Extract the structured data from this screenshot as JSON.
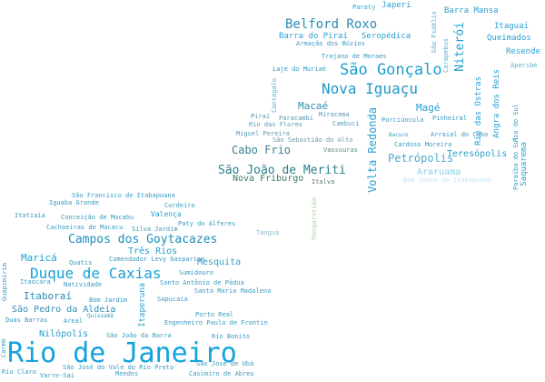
{
  "words": [
    {
      "text": "Rio de Janeiro",
      "color": "#13a3dc"
    },
    {
      "text": "Duque de Caxias",
      "color": "#16a1d6"
    },
    {
      "text": "São Gonçalo",
      "color": "#1c9fcf"
    },
    {
      "text": "Nova Iguaçu",
      "color": "#1d98c6"
    },
    {
      "text": "Campos dos Goytacazes",
      "color": "#1f8fba"
    },
    {
      "text": "Belford Roxo",
      "color": "#2a8eb5"
    },
    {
      "text": "São João de Meriti",
      "color": "#2b7d8c"
    },
    {
      "text": "Niterói",
      "color": "#24a0d0"
    },
    {
      "text": "Volta Redonda",
      "color": "#2a9fd2"
    },
    {
      "text": "Petrópolis",
      "color": "#4fa9c9"
    },
    {
      "text": "Cabo Frio",
      "color": "#3c7f95"
    },
    {
      "text": "Nova Friburgo",
      "color": "#3a7a70"
    },
    {
      "text": "Macaé",
      "color": "#2e8fb0"
    },
    {
      "text": "Magé",
      "color": "#2a9fd0"
    },
    {
      "text": "Maricá",
      "color": "#1ea3d4"
    },
    {
      "text": "Itaboraí",
      "color": "#258cb0"
    },
    {
      "text": "Três Rios",
      "color": "#2aa0cc"
    },
    {
      "text": "Mesquita",
      "color": "#3a9ac0"
    },
    {
      "text": "Nilópolis",
      "color": "#2a9bc8"
    },
    {
      "text": "São Pedro da Aldeia",
      "color": "#2f8fb4"
    },
    {
      "text": "Araruama",
      "color": "#8ccfe6"
    },
    {
      "text": "Teresópolis",
      "color": "#2aa0cc"
    },
    {
      "text": "Resende",
      "color": "#2a9fd2"
    },
    {
      "text": "Queimados",
      "color": "#2a9fd2"
    },
    {
      "text": "Itaguaí",
      "color": "#2aa4d8"
    },
    {
      "text": "Barra Mansa",
      "color": "#2a9fd2"
    },
    {
      "text": "Japeri",
      "color": "#2a9fd2"
    },
    {
      "text": "Paraty",
      "color": "#2aa4d8"
    },
    {
      "text": "Barra do Piraí",
      "color": "#2a9fd2"
    },
    {
      "text": "Seropédica",
      "color": "#2aa0cc"
    },
    {
      "text": "Armação dos Búzios",
      "color": "#3a9ac0"
    },
    {
      "text": "Trajano de Moraes",
      "color": "#3a9ac0"
    },
    {
      "text": "Laje do Muriaé",
      "color": "#3a9ac0"
    },
    {
      "text": "Rio das Ostras",
      "color": "#2a9fd2"
    },
    {
      "text": "Angra dos Reis",
      "color": "#2a9fd2"
    },
    {
      "text": "São Fidélis",
      "color": "#5aaed0"
    },
    {
      "text": "Carapebus",
      "color": "#5aaed0"
    },
    {
      "text": "Aperibé",
      "color": "#5aaed0"
    },
    {
      "text": "Cantagalo",
      "color": "#5aaed0"
    },
    {
      "text": "Piraí",
      "color": "#5a9ab8"
    },
    {
      "text": "Paracambi",
      "color": "#5a9ab8"
    },
    {
      "text": "Miracema",
      "color": "#5a9ab8"
    },
    {
      "text": "Rio das Flores",
      "color": "#5a9ab8"
    },
    {
      "text": "Cambuci",
      "color": "#5a9ab8"
    },
    {
      "text": "Miguel Pereira",
      "color": "#5a9ab8"
    },
    {
      "text": "São Sebastião do Alto",
      "color": "#6e9aa8"
    },
    {
      "text": "Vassouras",
      "color": "#5a8a7e"
    },
    {
      "text": "Porciúncula",
      "color": "#3a9ac0"
    },
    {
      "text": "Pinheiral",
      "color": "#3a9ac0"
    },
    {
      "text": "Bacuco",
      "color": "#3a9ac0"
    },
    {
      "text": "Arraial do Cabo",
      "color": "#3a9ac0"
    },
    {
      "text": "Cardoso Moreira",
      "color": "#3a9ac0"
    },
    {
      "text": "Rio do Sul",
      "color": "#3a9ac0"
    },
    {
      "text": "Paraíba do Sul",
      "color": "#3a9ac0"
    },
    {
      "text": "Saquarema",
      "color": "#2a9fd2"
    },
    {
      "text": "Bom Jesus do Itabapoana",
      "color": "#c4e4f0"
    },
    {
      "text": "Italva",
      "color": "#5a7a6e"
    },
    {
      "text": "Mangaratiba",
      "color": "#a8d8a0"
    },
    {
      "text": "Tanguá",
      "color": "#8ab8c8"
    },
    {
      "text": "São Francisco de Itabapoana",
      "color": "#3a9ac0"
    },
    {
      "text": "Iguaba Grande",
      "color": "#3a9ac0"
    },
    {
      "text": "Cordeiro",
      "color": "#3a9ac0"
    },
    {
      "text": "Itatiaia",
      "color": "#3a9ac0"
    },
    {
      "text": "Conceição de Macabu",
      "color": "#3a9ac0"
    },
    {
      "text": "Valença",
      "color": "#2a9fd2"
    },
    {
      "text": "Cachoeiras de Macacu",
      "color": "#3a9ac0"
    },
    {
      "text": "Silva Jardim",
      "color": "#3a9ac0"
    },
    {
      "text": "Paty do Alferes",
      "color": "#3a9ac0"
    },
    {
      "text": "Quatis",
      "color": "#3a9ac0"
    },
    {
      "text": "Comendador Levy Gasparian",
      "color": "#3a9ac0"
    },
    {
      "text": "Sumidouro",
      "color": "#3a9ac0"
    },
    {
      "text": "Guapimirim",
      "color": "#3a9ac0"
    },
    {
      "text": "Itaocara",
      "color": "#3a9ac0"
    },
    {
      "text": "Natividade",
      "color": "#3a9ac0"
    },
    {
      "text": "Santo Antônio de Pádua",
      "color": "#3a9ac0"
    },
    {
      "text": "Santa Maria Madalena",
      "color": "#3a9ac0"
    },
    {
      "text": "Bom Jardim",
      "color": "#3a9ac0"
    },
    {
      "text": "Itaperuna",
      "color": "#2a9fd2"
    },
    {
      "text": "Sapucaia",
      "color": "#3a9ac0"
    },
    {
      "text": "Quissamã",
      "color": "#3a9ac0"
    },
    {
      "text": "Duas Barras",
      "color": "#3a9ac0"
    },
    {
      "text": "Areal",
      "color": "#3a9ac0"
    },
    {
      "text": "Porto Real",
      "color": "#3a9ac0"
    },
    {
      "text": "Engenheiro Paulo de Frontin",
      "color": "#3a9ac0"
    },
    {
      "text": "São João da Barra",
      "color": "#3a9ac0"
    },
    {
      "text": "Rio Bonito",
      "color": "#3a9ac0"
    },
    {
      "text": "Carmo",
      "color": "#3a9ac0"
    },
    {
      "text": "São José do Vale do Rio Preto",
      "color": "#3a9ac0"
    },
    {
      "text": "São José de Ubá",
      "color": "#3a9ac0"
    },
    {
      "text": "Rio Claro",
      "color": "#3a9ac0"
    },
    {
      "text": "Varre-Sai",
      "color": "#3a9ac0"
    },
    {
      "text": "Mendes",
      "color": "#3a9ac0"
    },
    {
      "text": "Casimiro de Abreu",
      "color": "#3a9ac0"
    }
  ]
}
